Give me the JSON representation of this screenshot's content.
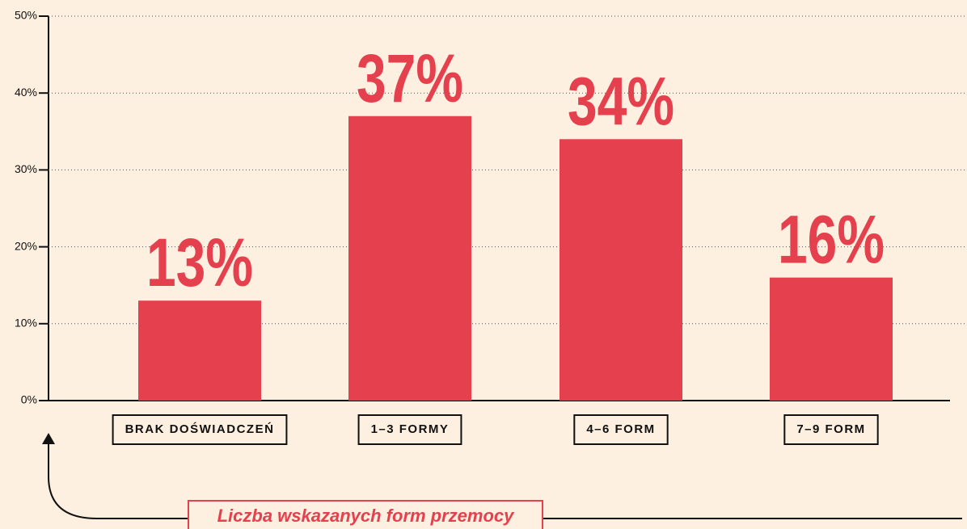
{
  "chart_data": {
    "type": "bar",
    "categories": [
      "BRAK DOŚWIADCZEŃ",
      "1–3 FORMY",
      "4–6 FORM",
      "7–9 FORM"
    ],
    "values": [
      13,
      37,
      34,
      16
    ],
    "value_labels": [
      "13%",
      "37%",
      "34%",
      "16%"
    ],
    "color": "#e5404d",
    "xlabel": "Liczba wskazanych form przemocy",
    "ylim": [
      0,
      50
    ],
    "yticks": [
      {
        "value": 0,
        "label": "0%"
      },
      {
        "value": 10,
        "label": "10%"
      },
      {
        "value": 20,
        "label": "20%"
      },
      {
        "value": 30,
        "label": "30%"
      },
      {
        "value": 40,
        "label": "40%"
      },
      {
        "value": 50,
        "label": "50%"
      }
    ],
    "grid": true
  }
}
